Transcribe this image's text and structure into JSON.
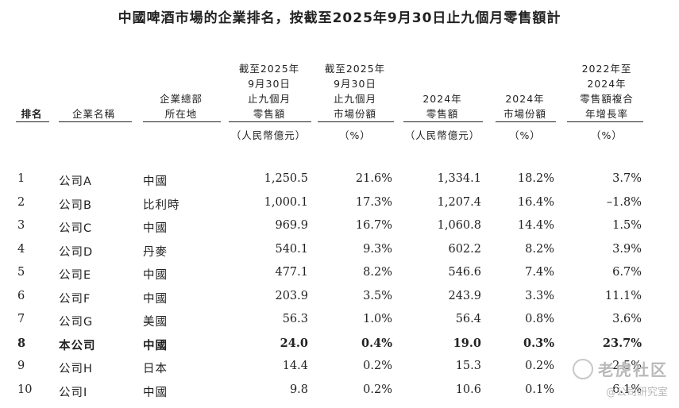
{
  "title": "中國啤酒市場的企業排名，按截至2025年9月30日止九個月零售額計",
  "headers": {
    "rank": "排名",
    "company": "企業名稱",
    "hq": "企業總部\n所在地",
    "sales_9m": "截至2025年\n9月30日\n止九個月\n零售額",
    "share_9m": "截至2025年\n9月30日\n止九個月\n市場份額",
    "sales_2024": "2024年\n零售額",
    "share_2024": "2024年\n市場份額",
    "cagr": "2022年至\n2024年\n零售額複合\n年增長率"
  },
  "units": {
    "sales_9m": "（人民幣億元）",
    "share_9m": "（%）",
    "sales_2024": "（人民幣億元）",
    "share_2024": "（%）",
    "cagr": "（%）"
  },
  "rows": [
    {
      "rank": "1",
      "company": "公司A",
      "hq": "中國",
      "sales_9m": "1,250.5",
      "share_9m": "21.6%",
      "sales_2024": "1,334.1",
      "share_2024": "18.2%",
      "cagr": "3.7%"
    },
    {
      "rank": "2",
      "company": "公司B",
      "hq": "比利時",
      "sales_9m": "1,000.1",
      "share_9m": "17.3%",
      "sales_2024": "1,207.4",
      "share_2024": "16.4%",
      "cagr": "–1.8%"
    },
    {
      "rank": "3",
      "company": "公司C",
      "hq": "中國",
      "sales_9m": "969.9",
      "share_9m": "16.7%",
      "sales_2024": "1,060.8",
      "share_2024": "14.4%",
      "cagr": "1.5%"
    },
    {
      "rank": "4",
      "company": "公司D",
      "hq": "丹麥",
      "sales_9m": "540.1",
      "share_9m": "9.3%",
      "sales_2024": "602.2",
      "share_2024": "8.2%",
      "cagr": "3.9%"
    },
    {
      "rank": "5",
      "company": "公司E",
      "hq": "中國",
      "sales_9m": "477.1",
      "share_9m": "8.2%",
      "sales_2024": "546.6",
      "share_2024": "7.4%",
      "cagr": "6.7%"
    },
    {
      "rank": "6",
      "company": "公司F",
      "hq": "中國",
      "sales_9m": "203.9",
      "share_9m": "3.5%",
      "sales_2024": "243.9",
      "share_2024": "3.3%",
      "cagr": "11.1%"
    },
    {
      "rank": "7",
      "company": "公司G",
      "hq": "美國",
      "sales_9m": "56.3",
      "share_9m": "1.0%",
      "sales_2024": "56.4",
      "share_2024": "0.8%",
      "cagr": "3.6%"
    },
    {
      "rank": "8",
      "company": "本公司",
      "hq": "中國",
      "sales_9m": "24.0",
      "share_9m": "0.4%",
      "sales_2024": "19.0",
      "share_2024": "0.3%",
      "cagr": "23.7%",
      "highlight": true
    },
    {
      "rank": "9",
      "company": "公司H",
      "hq": "日本",
      "sales_9m": "14.4",
      "share_9m": "0.2%",
      "sales_2024": "15.3",
      "share_2024": "0.2%",
      "cagr": "2.5%"
    },
    {
      "rank": "10",
      "company": "公司I",
      "hq": "中國",
      "sales_9m": "9.8",
      "share_9m": "0.2%",
      "sales_2024": "10.6",
      "share_2024": "0.1%",
      "cagr": "6.1%"
    }
  ],
  "watermark": {
    "logo": "老虎社区",
    "sub": "@公司研究室"
  }
}
